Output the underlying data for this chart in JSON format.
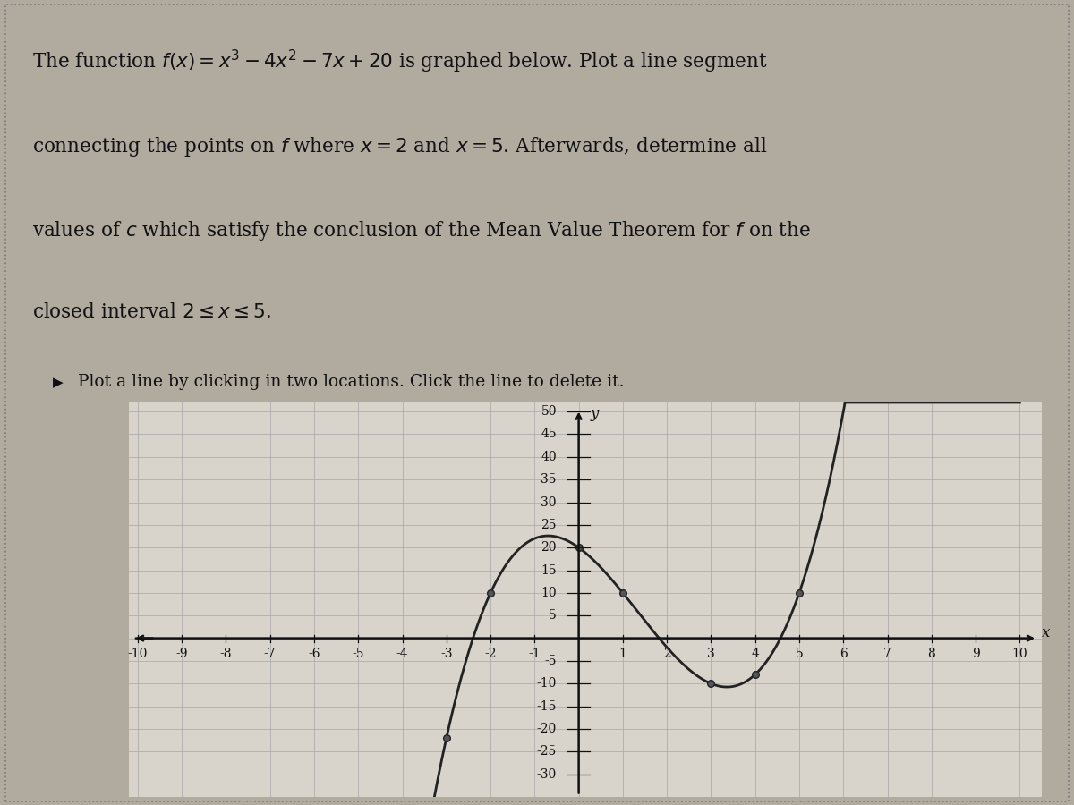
{
  "func_coeffs": [
    1,
    -4,
    -7,
    20
  ],
  "x_min": -10,
  "x_max": 10,
  "y_display_min": -35,
  "y_display_max": 52,
  "dot_points": [
    -3,
    -2,
    0,
    1,
    3,
    4,
    5
  ],
  "curve_color": "#222222",
  "dot_color": "#222222",
  "grid_color": "#aaaaaa",
  "graph_bg": "#d8d4cc",
  "outer_bg": "#b0aa9f",
  "text_color": "#111111",
  "axis_color": "#111111",
  "title_line1": "The function $f(x) = x^3 - 4x^2 - 7x + 20$ is graphed below. Plot a line segment",
  "title_line2": "connecting the points on $f$ where $x = 2$ and $x = 5$. Afterwards, determine all",
  "title_line3": "values of $c$ which satisfy the conclusion of the Mean Value Theorem for $f$ on the",
  "title_line4": "closed interval $2 \\leq x \\leq 5$.",
  "instruction_text": "Plot a line by clicking in two locations. Click the line to delete it.",
  "axis_label_x": "x",
  "axis_label_y": "y",
  "title_fontsize": 15.5,
  "instruction_fontsize": 13.5,
  "tick_fontsize": 10
}
